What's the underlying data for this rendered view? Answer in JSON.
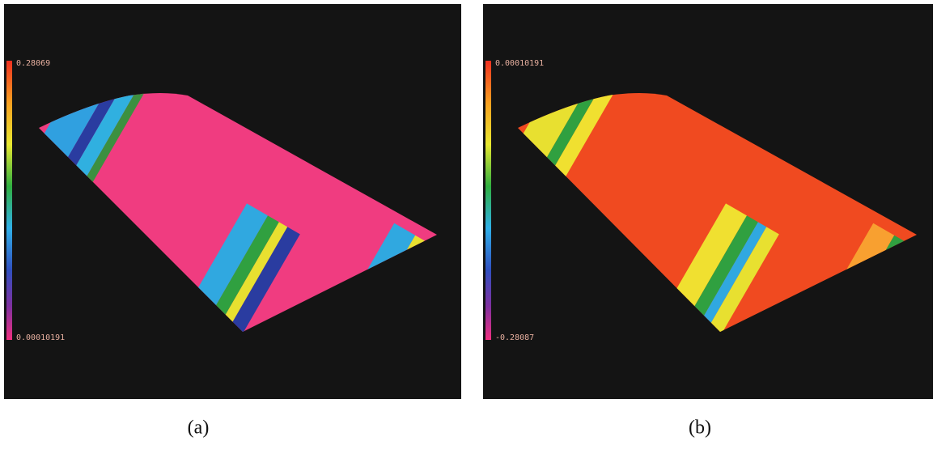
{
  "panels": [
    {
      "colorbar_max": "0.28069",
      "colorbar_min": "0.00010191",
      "caption": "(a)"
    },
    {
      "colorbar_max": "0.00010191",
      "colorbar_min": "-0.28087",
      "caption": "(b)"
    }
  ]
}
